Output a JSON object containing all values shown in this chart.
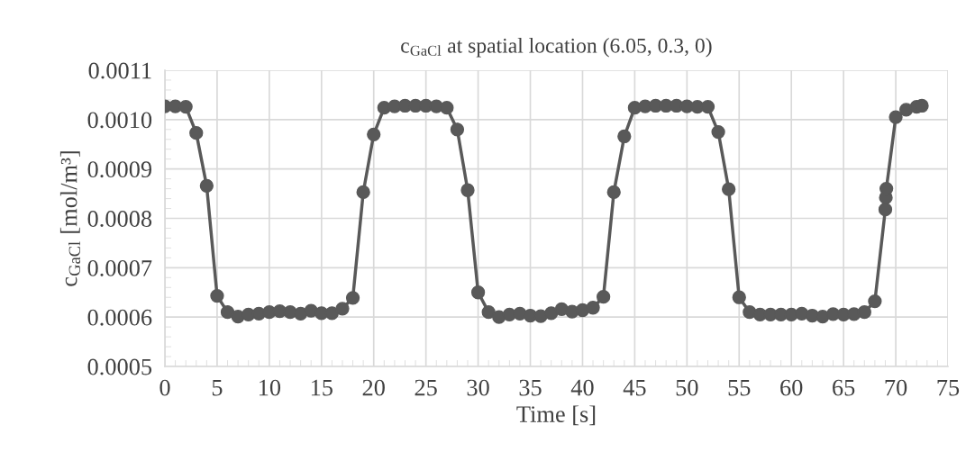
{
  "chart_data": {
    "type": "line",
    "title": "c$_{GaCl}$ at spatial location (6.05, 0.3, 0)",
    "xlabel": "Time [s]",
    "ylabel": "c$_{GaCl}$ [mol/m³]",
    "x": [
      0,
      1,
      2,
      3,
      4,
      5,
      6,
      7,
      8,
      9,
      10,
      11,
      12,
      13,
      14,
      15,
      16,
      17,
      18,
      19,
      20,
      21,
      22,
      23,
      24,
      25,
      26,
      27,
      28,
      29,
      30,
      31,
      32,
      33,
      34,
      35,
      36,
      37,
      38,
      39,
      40,
      41,
      42,
      43,
      44,
      45,
      46,
      47,
      48,
      49,
      50,
      51,
      52,
      53,
      54,
      55,
      56,
      57,
      58,
      59,
      60,
      61,
      62,
      63,
      64,
      65,
      66,
      67,
      68,
      69,
      69.05,
      69.1,
      70,
      71,
      72,
      72.5
    ],
    "series": [
      {
        "color": "#595959",
        "values": [
          0.001027,
          0.001027,
          0.001026,
          0.000973,
          0.000866,
          0.000643,
          0.00061,
          0.000601,
          0.000605,
          0.000607,
          0.00061,
          0.000612,
          0.00061,
          0.000607,
          0.000613,
          0.000608,
          0.000608,
          0.000617,
          0.000639,
          0.000853,
          0.00097,
          0.001024,
          0.001027,
          0.001028,
          0.001028,
          0.001028,
          0.001027,
          0.001024,
          0.00098,
          0.000857,
          0.00065,
          0.00061,
          0.0006,
          0.000605,
          0.000607,
          0.000603,
          0.000602,
          0.000608,
          0.000616,
          0.000611,
          0.000614,
          0.000619,
          0.000641,
          0.000853,
          0.000966,
          0.001024,
          0.001027,
          0.001028,
          0.001028,
          0.001028,
          0.001027,
          0.001026,
          0.001026,
          0.000975,
          0.000859,
          0.00064,
          0.00061,
          0.000605,
          0.000605,
          0.000605,
          0.000605,
          0.000607,
          0.000603,
          0.000601,
          0.000606,
          0.000605,
          0.000606,
          0.00061,
          0.000632,
          0.000818,
          0.000842,
          0.00086,
          0.001005,
          0.00102,
          0.001026,
          0.001028
        ]
      }
    ],
    "xlim": [
      0,
      75
    ],
    "xticks": [
      0,
      5,
      10,
      15,
      20,
      25,
      30,
      35,
      40,
      45,
      50,
      55,
      60,
      65,
      70,
      75
    ],
    "ylim": [
      0.0005,
      0.0011
    ],
    "yticks": [
      {
        "value": 0.0005,
        "label": "0.0005"
      },
      {
        "value": 0.0006,
        "label": "0.0006"
      },
      {
        "value": 0.0007,
        "label": "0.0007"
      },
      {
        "value": 0.0008,
        "label": "0.0008"
      },
      {
        "value": 0.0009,
        "label": "0.0009"
      },
      {
        "value": 0.001,
        "label": "0.0010"
      },
      {
        "value": 0.0011,
        "label": "0.0011"
      }
    ],
    "grid": true,
    "marker": "circle",
    "line_style": "solid"
  }
}
